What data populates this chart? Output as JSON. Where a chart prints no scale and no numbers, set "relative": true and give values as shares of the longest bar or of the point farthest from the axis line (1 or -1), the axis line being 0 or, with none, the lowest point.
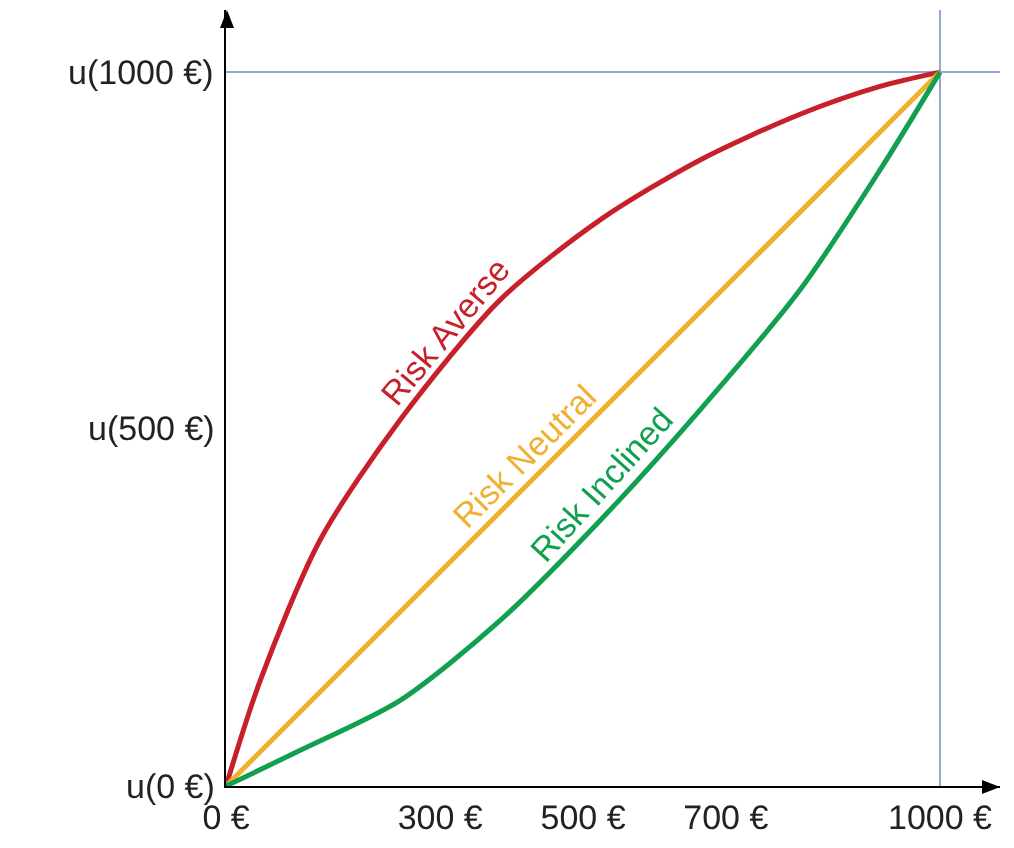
{
  "chart_data": {
    "type": "line",
    "legend": false,
    "grid": false,
    "relative": true,
    "xlim": [
      0,
      1084
    ],
    "xticks": [
      {
        "value": 0,
        "label": "0 €"
      },
      {
        "value": 300,
        "label": "300 €"
      },
      {
        "value": 500,
        "label": "500 €"
      },
      {
        "value": 700,
        "label": "700 €"
      },
      {
        "value": 1000,
        "label": "1000 €"
      }
    ],
    "annotations": [
      "u(0 €)",
      "u(500 €)",
      "u(1000 €)"
    ],
    "ref_lines": [
      {
        "axis": "x",
        "value": 1000,
        "color": "#8fa8d8"
      },
      {
        "axis": "y",
        "value": 1,
        "color": "#8fa8d8"
      }
    ],
    "series": [
      {
        "name": "Risk Averse",
        "color": "#c8202a",
        "x": [
          0,
          48,
          132,
          244,
          384,
          524,
          664,
          804,
          916,
          1000
        ],
        "values": [
          0,
          0.148,
          0.345,
          0.513,
          0.681,
          0.793,
          0.877,
          0.941,
          0.98,
          1
        ]
      },
      {
        "name": "Risk Neutral",
        "color": "#f0b030",
        "x": [
          0,
          1000
        ],
        "values": [
          0,
          1
        ]
      },
      {
        "name": "Risk Inclined",
        "color": "#10a050",
        "x": [
          0,
          104,
          244,
          384,
          524,
          664,
          804,
          916,
          1000
        ],
        "values": [
          0,
          0.05,
          0.12,
          0.232,
          0.372,
          0.527,
          0.695,
          0.863,
          1
        ]
      }
    ]
  }
}
